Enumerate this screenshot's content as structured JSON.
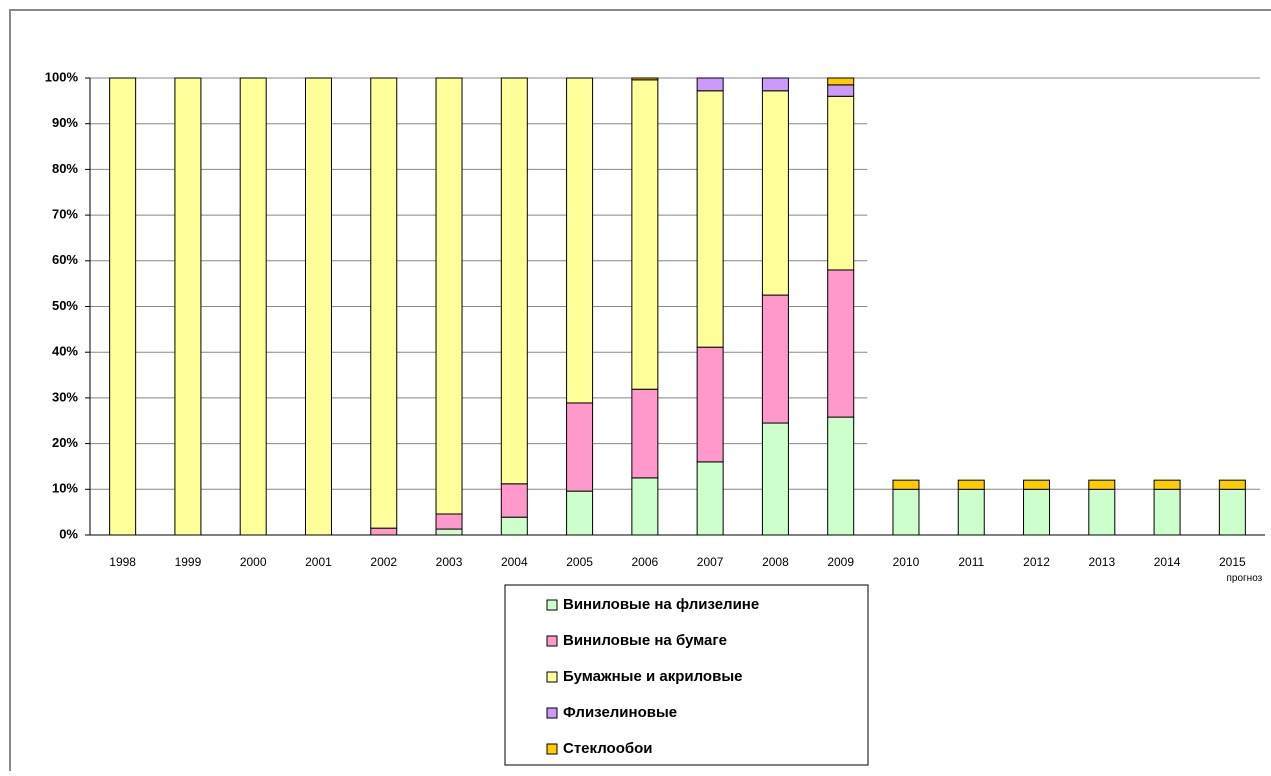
{
  "chart_data": {
    "type": "stacked_bar_percent",
    "categories": [
      "1998",
      "1999",
      "2000",
      "2001",
      "2002",
      "2003",
      "2004",
      "2005",
      "2006",
      "2007",
      "2008",
      "2009",
      "2010",
      "2011",
      "2012",
      "2013",
      "2014",
      "2015 прогноз"
    ],
    "series": [
      {
        "name": "Виниловые на флизелине",
        "color": "#ccffcc",
        "values": [
          0,
          0,
          0,
          0,
          0,
          1.3,
          3.9,
          9.6,
          12.5,
          16,
          24.5,
          25.8,
          10,
          10,
          10,
          10,
          10,
          10
        ]
      },
      {
        "name": "Виниловые на бумаге",
        "color": "#ff99cc",
        "values": [
          0,
          0,
          0,
          0,
          1.5,
          3.3,
          7.3,
          19.3,
          19.4,
          25.1,
          28,
          32.2,
          null,
          null,
          null,
          null,
          null,
          null
        ]
      },
      {
        "name": "Бумажные и акриловые",
        "color": "#ffff99",
        "values": [
          100,
          100,
          100,
          100,
          98.5,
          95.4,
          88.8,
          71.1,
          67.7,
          56.1,
          44.7,
          38,
          null,
          null,
          null,
          null,
          null,
          null
        ]
      },
      {
        "name": "Флизелиновые",
        "color": "#cc99ff",
        "values": [
          0,
          0,
          0,
          0,
          0,
          0,
          0,
          0,
          0,
          2.8,
          2.8,
          2.5,
          null,
          null,
          null,
          null,
          null,
          null
        ]
      },
      {
        "name": "Стеклообои",
        "color": "#ffcc00",
        "values": [
          0,
          0,
          0,
          0,
          0,
          0,
          0,
          0,
          0.4,
          0,
          0,
          1.5,
          2,
          2,
          2,
          2,
          2,
          2
        ]
      }
    ],
    "ylim": [
      0,
      100
    ],
    "yticks": [
      {
        "value": 0,
        "label": "0%"
      },
      {
        "value": 10,
        "label": "10%"
      },
      {
        "value": 20,
        "label": "20%"
      },
      {
        "value": 30,
        "label": "30%"
      },
      {
        "value": 40,
        "label": "40%"
      },
      {
        "value": 50,
        "label": "50%"
      },
      {
        "value": 60,
        "label": "60%"
      },
      {
        "value": 70,
        "label": "70%"
      },
      {
        "value": 80,
        "label": "80%"
      },
      {
        "value": 90,
        "label": "90%"
      },
      {
        "value": 100,
        "label": "100%"
      }
    ],
    "grid": true,
    "legend": "bottom"
  }
}
